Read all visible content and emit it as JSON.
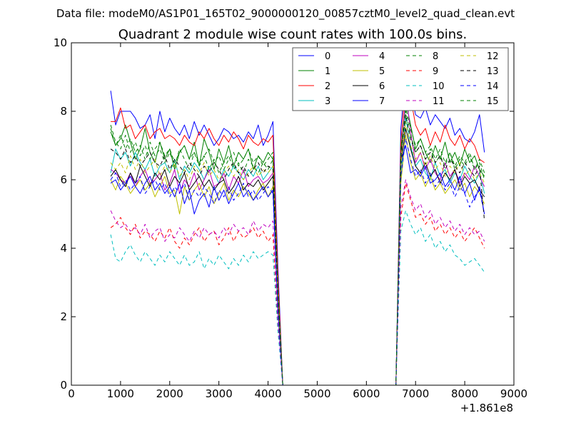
{
  "header": {
    "file_label": "Data file: modeM0/AS1P01_165T02_9000000120_00857cztM0_level2_quad_clean.evt"
  },
  "chart_data": {
    "type": "line",
    "title": "Quadrant 2 module wise count rates with 100.0s bins.",
    "xlabel": "",
    "ylabel": "",
    "x_offset_label": "+1.861e8",
    "xlim": [
      0,
      9000
    ],
    "ylim": [
      0,
      10
    ],
    "x_ticks": [
      0,
      1000,
      2000,
      3000,
      4000,
      5000,
      6000,
      7000,
      8000,
      9000
    ],
    "y_ticks": [
      0,
      2,
      4,
      6,
      8,
      10
    ],
    "x_tick_labels": [
      "0",
      "1000",
      "2000",
      "3000",
      "4000",
      "5000",
      "6000",
      "7000",
      "8000",
      "9000"
    ],
    "y_tick_labels": [
      "0",
      "2",
      "4",
      "6",
      "8",
      "10"
    ],
    "grid": false,
    "legend_position": "top-right",
    "segments": {
      "seg1": [
        800,
        900,
        1000,
        1100,
        1200,
        1300,
        1400,
        1500,
        1600,
        1700,
        1800,
        1900,
        2000,
        2100,
        2200,
        2300,
        2400,
        2500,
        2600,
        2700,
        2800,
        2900,
        3000,
        3100,
        3200,
        3300,
        3400,
        3500,
        3600,
        3700,
        3800,
        3900,
        4000,
        4100
      ],
      "drop": [
        4200,
        4300
      ],
      "gap": [
        4400,
        6600
      ],
      "seg2": [
        6700,
        6800,
        6900,
        7000,
        7100,
        7200,
        7300,
        7400,
        7500,
        7600,
        7700,
        7800,
        7900,
        8000,
        8100,
        8200,
        8300,
        8400
      ]
    },
    "series": [
      {
        "name": "0",
        "color": "#0000ff",
        "style": "solid",
        "seg1": [
          8.6,
          7.6,
          8.0,
          8.0,
          8.0,
          7.8,
          7.5,
          7.6,
          7.9,
          7.2,
          8.0,
          7.4,
          7.8,
          7.5,
          7.3,
          7.6,
          7.2,
          7.7,
          7.3,
          7.6,
          7.3,
          7.0,
          7.2,
          7.5,
          7.4,
          7.2,
          7.3,
          7.1,
          7.4,
          7.2,
          7.6,
          7.0,
          7.3,
          7.7
        ],
        "drop": [
          3.5,
          0.0
        ],
        "seg2": [
          7.5,
          9.1,
          8.7,
          7.9,
          7.8,
          8.1,
          7.6,
          7.9,
          7.7,
          7.5,
          7.8,
          7.3,
          7.5,
          7.2,
          7.1,
          7.4,
          7.9,
          6.8
        ]
      },
      {
        "name": "1",
        "color": "#008000",
        "style": "solid",
        "seg1": [
          7.4,
          7.0,
          7.2,
          7.6,
          7.1,
          6.6,
          6.9,
          7.5,
          6.8,
          6.5,
          7.1,
          6.6,
          6.9,
          6.3,
          6.8,
          7.0,
          6.6,
          7.1,
          6.4,
          7.2,
          6.8,
          6.3,
          6.9,
          6.5,
          7.0,
          6.4,
          6.8,
          6.6,
          6.9,
          6.3,
          6.7,
          6.5,
          6.8,
          6.6
        ],
        "drop": [
          2.7,
          0.0
        ],
        "seg2": [
          6.8,
          8.3,
          7.6,
          6.9,
          7.2,
          6.8,
          6.5,
          7.0,
          6.6,
          7.1,
          6.5,
          6.8,
          6.4,
          6.9,
          6.5,
          6.7,
          6.3,
          6.1
        ]
      },
      {
        "name": "2",
        "color": "#ff0000",
        "style": "solid",
        "seg1": [
          7.7,
          7.7,
          8.1,
          7.5,
          7.6,
          7.2,
          7.4,
          7.6,
          7.2,
          7.4,
          7.5,
          7.2,
          7.3,
          7.2,
          7.0,
          7.3,
          7.1,
          7.0,
          7.4,
          7.2,
          7.5,
          7.2,
          7.0,
          7.3,
          7.1,
          7.4,
          7.2,
          6.9,
          7.3,
          7.1,
          7.0,
          7.2,
          7.1,
          7.3
        ],
        "drop": [
          3.2,
          0.0
        ],
        "seg2": [
          7.1,
          8.8,
          8.4,
          7.6,
          7.3,
          7.5,
          7.0,
          7.4,
          7.1,
          7.6,
          7.2,
          7.0,
          7.3,
          6.9,
          7.2,
          7.0,
          6.6,
          6.5
        ]
      },
      {
        "name": "3",
        "color": "#00bfbf",
        "style": "solid",
        "seg1": [
          6.2,
          6.9,
          6.6,
          6.8,
          6.4,
          6.8,
          6.5,
          6.3,
          6.6,
          6.1,
          6.4,
          6.5,
          6.2,
          6.6,
          6.0,
          6.4,
          6.2,
          6.5,
          6.3,
          6.0,
          6.4,
          6.2,
          5.9,
          6.3,
          6.1,
          6.4,
          6.2,
          6.0,
          6.3,
          6.1,
          6.4,
          6.0,
          6.2,
          6.4
        ],
        "drop": [
          2.5,
          0.0
        ],
        "seg2": [
          6.0,
          7.8,
          7.0,
          6.4,
          6.6,
          6.2,
          6.0,
          6.5,
          6.1,
          6.3,
          5.9,
          6.2,
          6.0,
          6.4,
          6.1,
          5.9,
          6.2,
          5.6
        ]
      },
      {
        "name": "4",
        "color": "#bf00bf",
        "style": "solid",
        "seg1": [
          6.3,
          6.2,
          6.0,
          5.9,
          6.2,
          5.8,
          6.1,
          6.3,
          5.9,
          6.0,
          6.2,
          5.7,
          5.9,
          6.3,
          5.6,
          6.0,
          5.8,
          6.2,
          5.7,
          6.0,
          6.3,
          5.8,
          5.9,
          6.2,
          5.7,
          6.1,
          5.9,
          6.3,
          5.8,
          6.0,
          6.1,
          5.9,
          6.0,
          6.2
        ],
        "drop": [
          2.6,
          0.0
        ],
        "seg2": [
          6.3,
          8.6,
          7.4,
          6.5,
          6.8,
          6.3,
          6.6,
          6.2,
          6.0,
          6.5,
          6.1,
          6.3,
          5.9,
          6.2,
          6.0,
          6.4,
          6.1,
          5.8
        ]
      },
      {
        "name": "5",
        "color": "#bfbf00",
        "style": "solid",
        "seg1": [
          6.0,
          5.7,
          6.1,
          5.9,
          5.6,
          5.8,
          6.0,
          5.7,
          5.9,
          5.5,
          5.8,
          6.1,
          5.6,
          5.7,
          5.0,
          5.8,
          5.4,
          5.7,
          5.9,
          5.5,
          5.8,
          5.3,
          5.6,
          5.9,
          5.4,
          5.7,
          5.5,
          5.8,
          5.6,
          5.4,
          5.7,
          5.9,
          5.5,
          5.8
        ],
        "drop": [
          2.3,
          0.0
        ],
        "seg2": [
          5.9,
          7.3,
          6.5,
          6.0,
          6.2,
          5.8,
          6.1,
          5.7,
          5.9,
          5.6,
          5.8,
          6.0,
          5.7,
          5.9,
          5.5,
          5.8,
          5.6,
          5.3
        ]
      },
      {
        "name": "6",
        "color": "#000000",
        "style": "solid",
        "seg1": [
          6.1,
          6.3,
          6.0,
          5.8,
          6.2,
          5.9,
          6.4,
          6.1,
          5.8,
          6.2,
          6.0,
          6.3,
          5.8,
          6.1,
          5.9,
          6.2,
          5.7,
          5.9,
          6.1,
          5.8,
          6.0,
          5.7,
          5.9,
          6.0,
          5.6,
          5.8,
          6.1,
          5.7,
          5.9,
          5.8,
          6.0,
          5.7,
          5.9,
          6.1
        ],
        "drop": [
          2.4,
          0.0
        ],
        "seg2": [
          6.4,
          7.5,
          6.9,
          6.4,
          6.2,
          6.5,
          6.1,
          6.3,
          5.9,
          6.2,
          6.0,
          6.3,
          5.8,
          6.1,
          5.9,
          6.0,
          5.7,
          5.5
        ]
      },
      {
        "name": "7",
        "color": "#0000ff",
        "style": "solid",
        "seg1": [
          5.9,
          6.0,
          5.7,
          5.9,
          6.1,
          5.8,
          5.6,
          5.9,
          6.1,
          5.7,
          5.9,
          5.6,
          5.8,
          5.5,
          5.9,
          5.3,
          5.7,
          5.0,
          5.4,
          5.6,
          5.2,
          5.8,
          5.4,
          5.7,
          5.3,
          5.6,
          5.9,
          5.5,
          5.7,
          5.4,
          5.6,
          5.8,
          5.5,
          5.7
        ],
        "drop": [
          2.3,
          0.0
        ],
        "seg2": [
          6.5,
          7.0,
          6.2,
          6.3,
          6.1,
          6.4,
          5.9,
          6.0,
          6.2,
          5.8,
          6.0,
          5.7,
          6.1,
          5.6,
          5.9,
          5.4,
          5.8,
          5.0
        ]
      },
      {
        "name": "8",
        "color": "#008000",
        "style": "dashed",
        "seg1": [
          7.5,
          7.0,
          7.3,
          6.9,
          7.2,
          6.8,
          7.0,
          6.6,
          7.1,
          6.7,
          6.9,
          6.5,
          6.8,
          6.4,
          6.9,
          6.6,
          6.3,
          6.8,
          6.5,
          6.7,
          6.3,
          6.6,
          6.2,
          6.5,
          6.7,
          6.3,
          6.5,
          6.2,
          6.6,
          6.4,
          6.2,
          6.5,
          6.3,
          6.6
        ],
        "drop": [
          2.9,
          0.0
        ],
        "seg2": [
          6.6,
          8.0,
          7.3,
          6.8,
          7.0,
          6.6,
          6.9,
          6.5,
          6.7,
          6.4,
          6.8,
          6.3,
          6.6,
          6.4,
          6.7,
          6.3,
          6.5,
          6.0
        ]
      },
      {
        "name": "9",
        "color": "#ff0000",
        "style": "dashed",
        "seg1": [
          4.6,
          4.7,
          4.9,
          4.6,
          4.4,
          4.7,
          4.3,
          4.5,
          4.4,
          4.2,
          4.5,
          4.3,
          4.6,
          4.2,
          4.0,
          4.3,
          4.1,
          4.4,
          4.6,
          4.2,
          4.4,
          4.5,
          4.1,
          4.3,
          4.6,
          4.2,
          4.5,
          4.3,
          4.4,
          4.6,
          4.3,
          4.5,
          4.2,
          4.4
        ],
        "drop": [
          1.8,
          0.0
        ],
        "seg2": [
          4.9,
          5.9,
          5.4,
          4.9,
          5.0,
          4.7,
          4.9,
          4.5,
          4.7,
          4.4,
          4.6,
          4.3,
          4.5,
          4.2,
          4.4,
          4.6,
          4.3,
          4.0
        ]
      },
      {
        "name": "10",
        "color": "#00bfbf",
        "style": "dashed",
        "seg1": [
          4.4,
          3.7,
          3.6,
          3.9,
          4.1,
          3.8,
          3.6,
          3.9,
          3.7,
          3.5,
          3.8,
          3.6,
          3.9,
          3.7,
          3.5,
          3.8,
          3.5,
          3.6,
          3.9,
          3.4,
          3.7,
          3.5,
          3.8,
          3.6,
          3.4,
          3.7,
          3.5,
          3.8,
          3.6,
          3.9,
          3.7,
          3.8,
          3.9,
          3.8
        ],
        "drop": [
          1.6,
          0.0
        ],
        "seg2": [
          4.5,
          5.1,
          4.7,
          4.4,
          4.6,
          4.2,
          4.4,
          4.0,
          4.2,
          3.9,
          4.1,
          3.8,
          3.7,
          3.5,
          3.6,
          3.7,
          3.5,
          3.3
        ]
      },
      {
        "name": "11",
        "color": "#bf00bf",
        "style": "dashed",
        "seg1": [
          5.1,
          4.8,
          4.6,
          4.7,
          4.5,
          4.6,
          4.4,
          4.7,
          4.3,
          4.5,
          4.6,
          4.2,
          4.4,
          4.3,
          4.6,
          4.4,
          4.2,
          4.5,
          4.3,
          4.6,
          4.4,
          4.5,
          4.3,
          4.6,
          4.4,
          4.7,
          4.5,
          4.6,
          4.4,
          4.8,
          4.5,
          4.7,
          4.6,
          4.8
        ],
        "drop": [
          1.9,
          0.0
        ],
        "seg2": [
          5.2,
          6.0,
          5.5,
          5.1,
          5.3,
          4.9,
          5.1,
          4.7,
          4.9,
          4.6,
          4.8,
          4.5,
          4.7,
          4.4,
          4.6,
          4.4,
          4.5,
          4.2
        ]
      },
      {
        "name": "12",
        "color": "#bfbf00",
        "style": "dashed",
        "seg1": [
          6.5,
          6.3,
          6.5,
          6.2,
          6.7,
          6.3,
          6.6,
          6.2,
          6.4,
          6.6,
          6.1,
          6.4,
          6.2,
          6.5,
          6.1,
          6.3,
          6.0,
          6.4,
          6.2,
          6.5,
          6.1,
          6.3,
          6.0,
          6.2,
          6.4,
          6.1,
          6.3,
          6.0,
          6.2,
          6.4,
          6.1,
          6.3,
          6.2,
          6.4
        ],
        "drop": [
          2.6,
          0.0
        ],
        "seg2": [
          6.4,
          7.7,
          7.0,
          6.6,
          6.8,
          6.4,
          6.7,
          6.3,
          6.5,
          6.1,
          6.4,
          6.2,
          6.5,
          6.1,
          6.3,
          6.0,
          6.2,
          5.9
        ]
      },
      {
        "name": "13",
        "color": "#000000",
        "style": "dashed",
        "seg1": [
          6.9,
          6.8,
          6.6,
          6.9,
          6.5,
          6.7,
          6.4,
          6.6,
          6.8,
          6.5,
          6.4,
          6.7,
          6.3,
          6.6,
          6.4,
          6.2,
          6.5,
          6.3,
          6.1,
          6.4,
          6.2,
          6.5,
          6.3,
          6.0,
          6.3,
          6.5,
          6.2,
          6.4,
          6.1,
          6.3,
          6.5,
          6.2,
          6.4,
          6.3
        ],
        "drop": [
          2.7,
          0.0
        ],
        "seg2": [
          6.7,
          7.9,
          7.2,
          6.8,
          7.0,
          6.6,
          6.8,
          6.5,
          6.7,
          6.3,
          6.6,
          6.4,
          6.2,
          6.5,
          6.3,
          6.1,
          6.4,
          4.8
        ]
      },
      {
        "name": "14",
        "color": "#0000ff",
        "style": "dashed",
        "seg1": [
          6.0,
          6.2,
          5.8,
          6.0,
          5.7,
          5.9,
          6.1,
          5.6,
          5.8,
          6.0,
          5.7,
          5.9,
          5.5,
          5.8,
          5.6,
          5.9,
          5.4,
          5.7,
          5.5,
          5.8,
          5.6,
          5.3,
          5.7,
          5.5,
          5.8,
          5.4,
          5.6,
          5.9,
          5.5,
          5.7,
          5.4,
          5.6,
          5.8,
          5.6
        ],
        "drop": [
          2.2,
          0.0
        ],
        "seg2": [
          6.1,
          7.2,
          6.6,
          6.1,
          6.3,
          5.9,
          6.2,
          5.8,
          6.0,
          5.7,
          5.9,
          5.5,
          5.8,
          5.6,
          5.2,
          5.5,
          5.7,
          5.0
        ]
      },
      {
        "name": "15",
        "color": "#008000",
        "style": "dashed",
        "seg1": [
          7.6,
          7.1,
          6.9,
          7.3,
          6.8,
          7.1,
          6.7,
          7.0,
          6.6,
          6.9,
          7.1,
          6.7,
          6.9,
          6.5,
          6.8,
          7.0,
          6.6,
          6.8,
          6.4,
          6.7,
          6.9,
          6.5,
          6.7,
          6.3,
          6.6,
          6.8,
          6.4,
          6.6,
          6.9,
          6.5,
          6.7,
          6.4,
          6.6,
          6.8
        ],
        "drop": [
          2.8,
          0.0
        ],
        "seg2": [
          6.9,
          8.1,
          7.5,
          7.0,
          7.2,
          6.8,
          7.0,
          6.6,
          6.9,
          6.5,
          6.8,
          6.4,
          6.7,
          6.5,
          6.8,
          6.3,
          6.6,
          6.2
        ]
      }
    ]
  }
}
